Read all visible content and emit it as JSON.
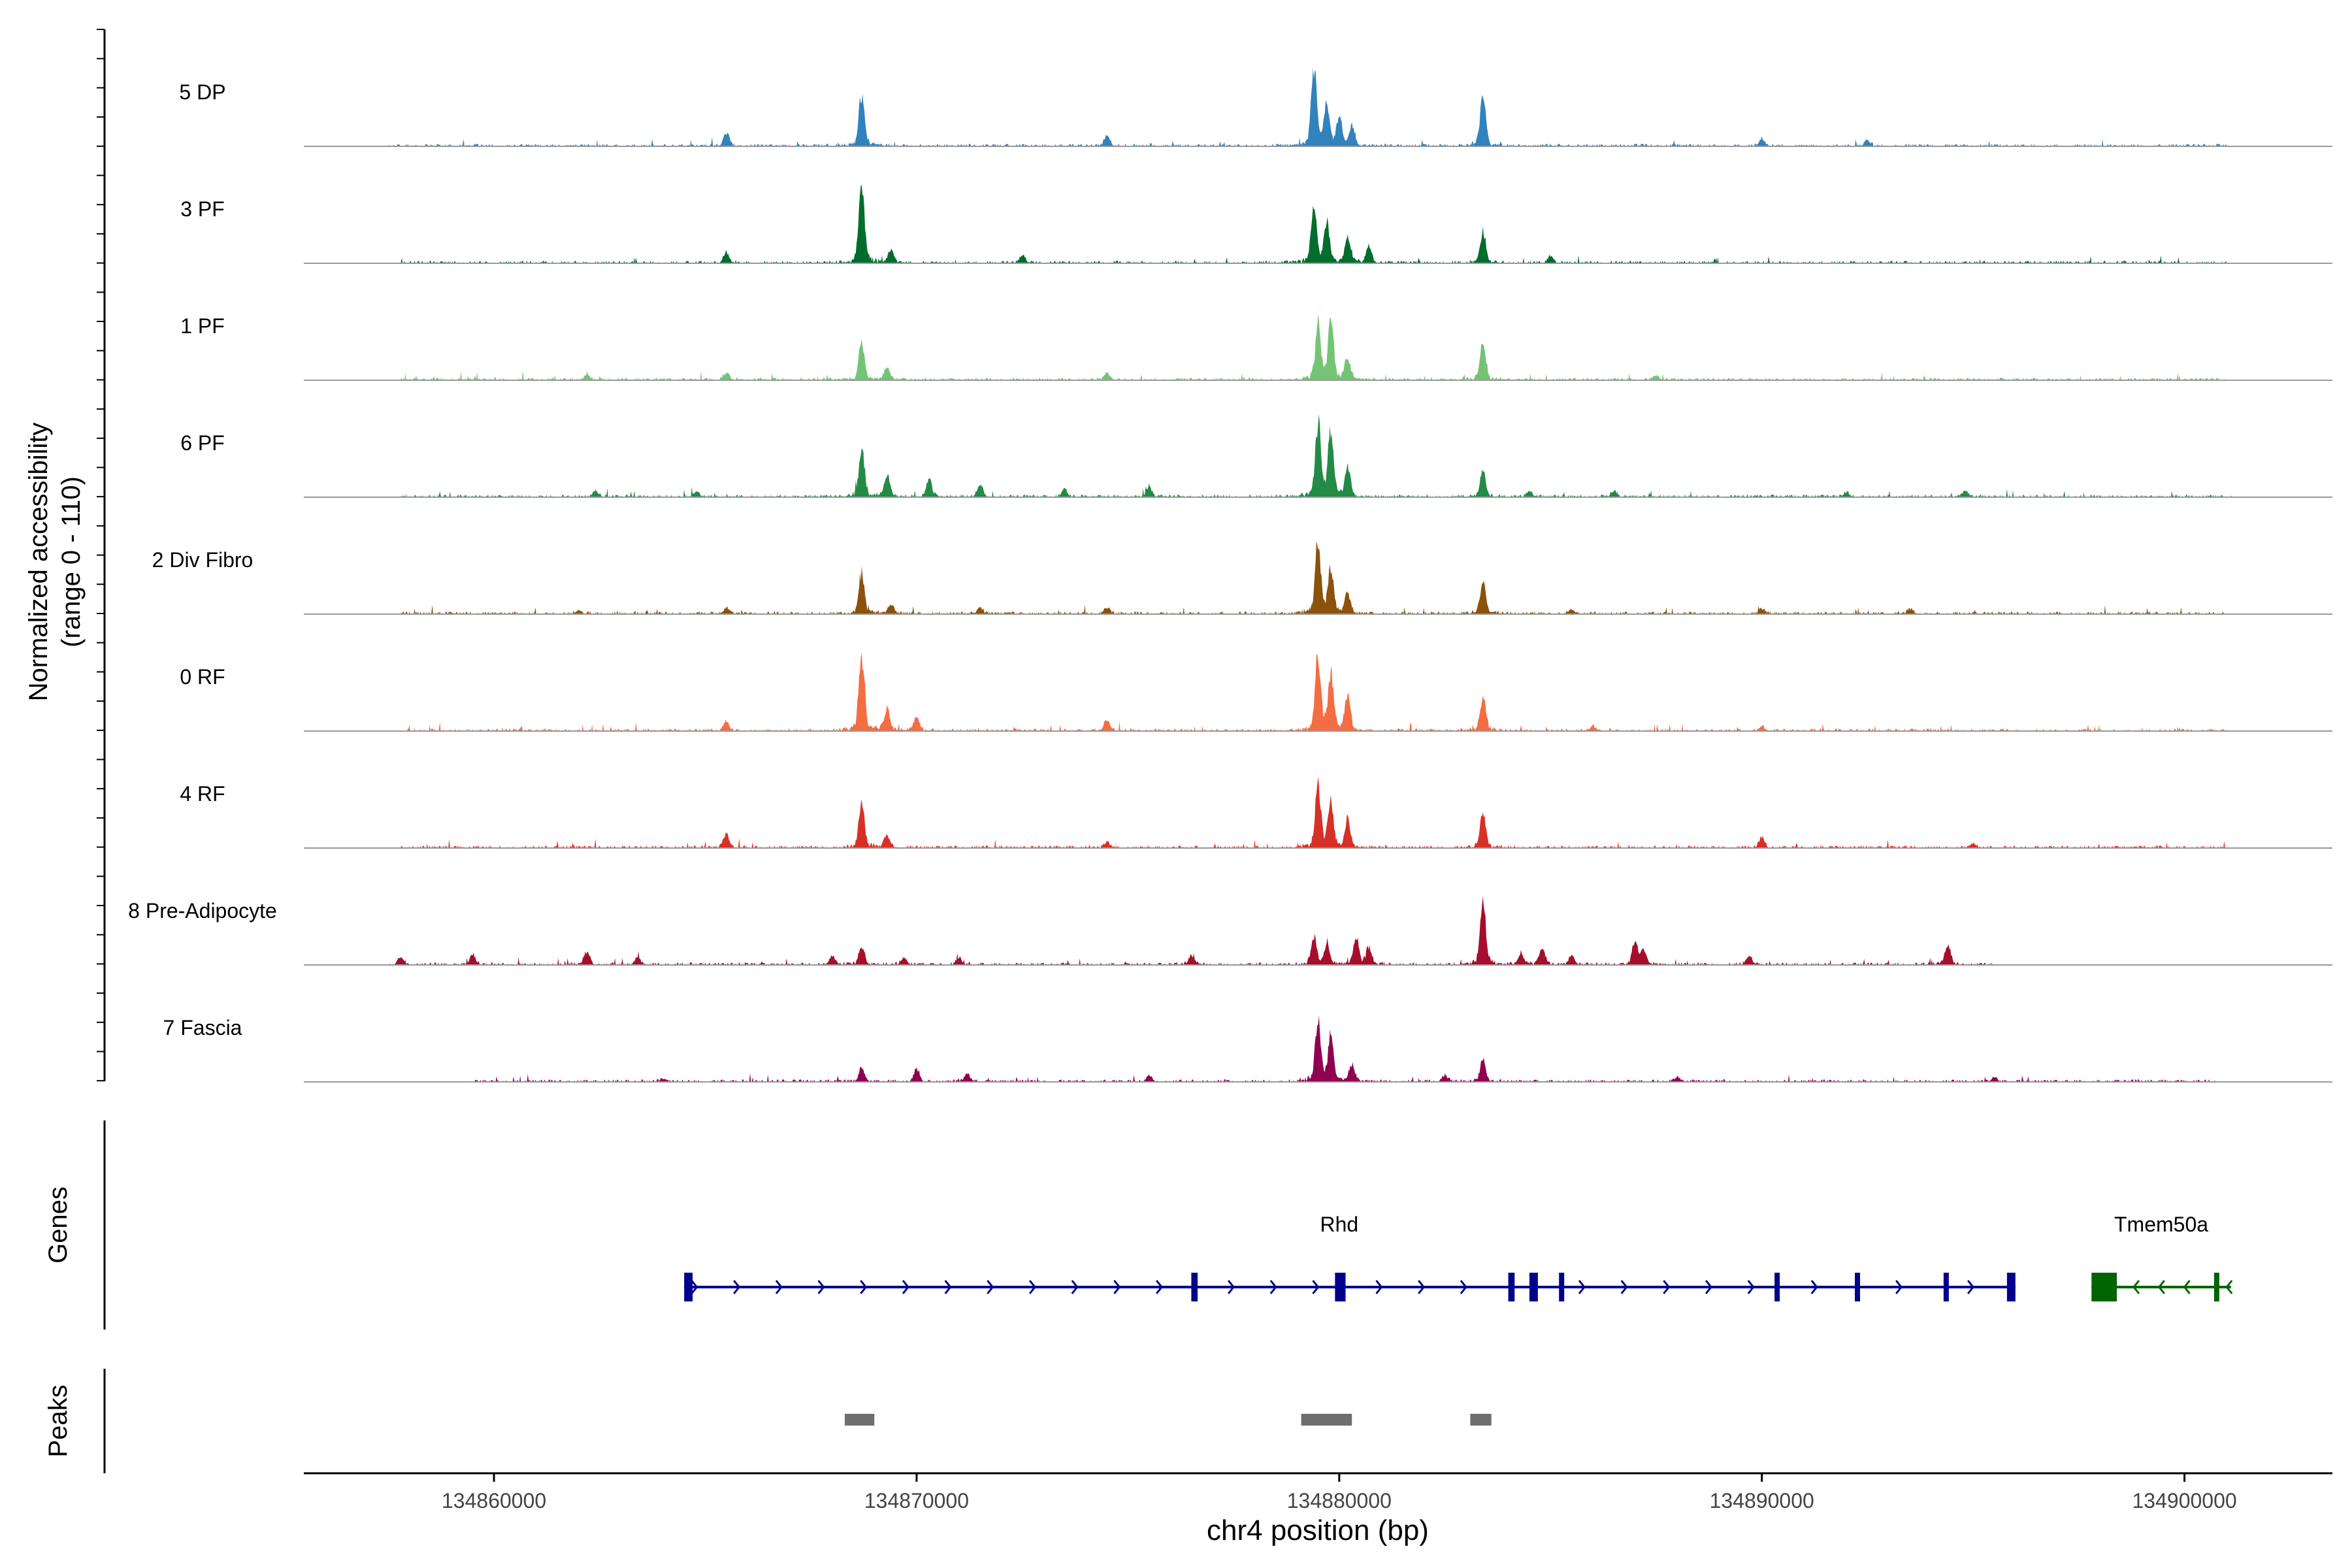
{
  "chart_data": {
    "type": "area",
    "title": "",
    "region": "chr4",
    "xlabel": "chr4 position (bp)",
    "ylabel_line1": "Normalized accessibility",
    "ylabel_line2": "(range 0 - 110)",
    "ylim": [
      0,
      110
    ],
    "xlim": [
      134855500,
      134903500
    ],
    "x_ticks": [
      134860000,
      134870000,
      134880000,
      134890000,
      134900000
    ],
    "x_tick_labels": [
      "134860000",
      "134870000",
      "134880000",
      "134890000",
      "134900000"
    ],
    "track_labels": {
      "genes": "Genes",
      "peaks": "Peaks"
    },
    "series": [
      {
        "name": "5 DP",
        "color": "#3182bd",
        "extent": [
          134857500,
          134901000
        ],
        "peaks": [
          [
            134865500,
            18
          ],
          [
            134868700,
            72
          ],
          [
            134874500,
            14
          ],
          [
            134879400,
            104
          ],
          [
            134879700,
            58
          ],
          [
            134880000,
            38
          ],
          [
            134880300,
            28
          ],
          [
            134883400,
            68
          ],
          [
            134890000,
            10
          ],
          [
            134892500,
            8
          ]
        ]
      },
      {
        "name": "3 PF",
        "color": "#006d2c",
        "extent": [
          134857800,
          134901000
        ],
        "peaks": [
          [
            134865500,
            14
          ],
          [
            134868700,
            110
          ],
          [
            134869400,
            18
          ],
          [
            134872500,
            10
          ],
          [
            134879400,
            76
          ],
          [
            134879700,
            54
          ],
          [
            134880200,
            36
          ],
          [
            134880700,
            22
          ],
          [
            134883400,
            42
          ],
          [
            134885000,
            8
          ]
        ]
      },
      {
        "name": "1 PF",
        "color": "#74c476",
        "extent": [
          134857800,
          134901000
        ],
        "peaks": [
          [
            134862200,
            8
          ],
          [
            134865500,
            10
          ],
          [
            134868700,
            48
          ],
          [
            134869300,
            18
          ],
          [
            134874500,
            10
          ],
          [
            134879500,
            72
          ],
          [
            134879800,
            80
          ],
          [
            134880200,
            30
          ],
          [
            134883400,
            52
          ],
          [
            134887500,
            6
          ]
        ]
      },
      {
        "name": "6 PF",
        "color": "#238b45",
        "extent": [
          134857800,
          134901200
        ],
        "peaks": [
          [
            134862400,
            8
          ],
          [
            134864800,
            6
          ],
          [
            134868700,
            66
          ],
          [
            134869300,
            30
          ],
          [
            134870300,
            24
          ],
          [
            134871500,
            16
          ],
          [
            134873500,
            12
          ],
          [
            134875500,
            14
          ],
          [
            134879500,
            100
          ],
          [
            134879800,
            88
          ],
          [
            134880200,
            40
          ],
          [
            134883400,
            34
          ],
          [
            134884500,
            8
          ],
          [
            134886500,
            8
          ],
          [
            134892000,
            6
          ],
          [
            134894800,
            8
          ]
        ]
      },
      {
        "name": "2 Div Fibro",
        "color": "#8c510a",
        "extent": [
          134857800,
          134901000
        ],
        "peaks": [
          [
            134862000,
            5
          ],
          [
            134865500,
            8
          ],
          [
            134868700,
            54
          ],
          [
            134869400,
            12
          ],
          [
            134871500,
            8
          ],
          [
            134874500,
            8
          ],
          [
            134879500,
            98
          ],
          [
            134879800,
            58
          ],
          [
            134880200,
            28
          ],
          [
            134883400,
            44
          ],
          [
            134885500,
            6
          ],
          [
            134890000,
            6
          ],
          [
            134893500,
            6
          ]
        ]
      },
      {
        "name": "0 RF",
        "color": "#f46d43",
        "extent": [
          134857800,
          134901000
        ],
        "peaks": [
          [
            134865500,
            12
          ],
          [
            134868700,
            104
          ],
          [
            134869300,
            28
          ],
          [
            134870000,
            20
          ],
          [
            134874500,
            14
          ],
          [
            134879500,
            102
          ],
          [
            134879800,
            78
          ],
          [
            134880200,
            46
          ],
          [
            134883400,
            48
          ],
          [
            134886000,
            6
          ],
          [
            134890000,
            6
          ]
        ]
      },
      {
        "name": "4 RF",
        "color": "#d73027",
        "extent": [
          134857800,
          134901000
        ],
        "peaks": [
          [
            134865500,
            18
          ],
          [
            134868700,
            64
          ],
          [
            134869300,
            18
          ],
          [
            134874500,
            8
          ],
          [
            134879500,
            88
          ],
          [
            134879800,
            62
          ],
          [
            134880200,
            36
          ],
          [
            134883400,
            48
          ],
          [
            134890000,
            14
          ],
          [
            134895000,
            6
          ]
        ]
      },
      {
        "name": "8 Pre-Adipocyte",
        "color": "#a50f2b",
        "extent": [
          134857500,
          134895500
        ],
        "peaks": [
          [
            134857800,
            10
          ],
          [
            134859500,
            14
          ],
          [
            134862200,
            18
          ],
          [
            134863400,
            10
          ],
          [
            134868000,
            12
          ],
          [
            134868700,
            24
          ],
          [
            134869700,
            10
          ],
          [
            134871000,
            10
          ],
          [
            134876500,
            12
          ],
          [
            134879400,
            38
          ],
          [
            134879700,
            24
          ],
          [
            134880400,
            36
          ],
          [
            134880700,
            22
          ],
          [
            134883400,
            90
          ],
          [
            134884300,
            16
          ],
          [
            134884800,
            24
          ],
          [
            134885500,
            12
          ],
          [
            134887000,
            30
          ],
          [
            134887200,
            18
          ],
          [
            134889700,
            12
          ],
          [
            134894400,
            28
          ]
        ]
      },
      {
        "name": "7 Fascia",
        "color": "#8e0152",
        "extent": [
          134859500,
          134900800
        ],
        "peaks": [
          [
            134864000,
            4
          ],
          [
            134868700,
            18
          ],
          [
            134870000,
            16
          ],
          [
            134871200,
            10
          ],
          [
            134875500,
            8
          ],
          [
            134879500,
            86
          ],
          [
            134879800,
            60
          ],
          [
            134880300,
            22
          ],
          [
            134882500,
            8
          ],
          [
            134883400,
            28
          ],
          [
            134888000,
            6
          ],
          [
            134895500,
            6
          ]
        ]
      }
    ],
    "genes": [
      {
        "name": "Rhd",
        "strand": "+",
        "color": "#00008b",
        "start": 134864500,
        "end": 134896000,
        "exons": [
          [
            134864500,
            134864700
          ],
          [
            134876500,
            134876650
          ],
          [
            134879900,
            134880150
          ],
          [
            134884000,
            134884150
          ],
          [
            134884500,
            134884700
          ],
          [
            134885200,
            134885300
          ],
          [
            134890300,
            134890400
          ],
          [
            134892200,
            134892250
          ],
          [
            134894300,
            134894350
          ],
          [
            134895800,
            134896000
          ]
        ],
        "arrows": [
          134864800,
          134865800,
          134866800,
          134867800,
          134868800,
          134869800,
          134870800,
          134871800,
          134872800,
          134873800,
          134874800,
          134875800,
          134877500,
          134878500,
          134879500,
          134881000,
          134882000,
          134883000,
          134885800,
          134886800,
          134887800,
          134888800,
          134889800,
          134891300,
          134893300,
          134895000
        ]
      },
      {
        "name": "Tmem50a",
        "strand": "-",
        "color": "#006400",
        "start": 134897800,
        "end": 134901100,
        "exons": [
          [
            134897800,
            134898400
          ],
          [
            134900700,
            134900750
          ]
        ],
        "arrows": [
          134898800,
          134899400,
          134900000,
          134901000
        ]
      }
    ],
    "peak_regions": [
      [
        134868300,
        134869000
      ],
      [
        134879100,
        134880300
      ],
      [
        134883100,
        134883600
      ]
    ]
  }
}
